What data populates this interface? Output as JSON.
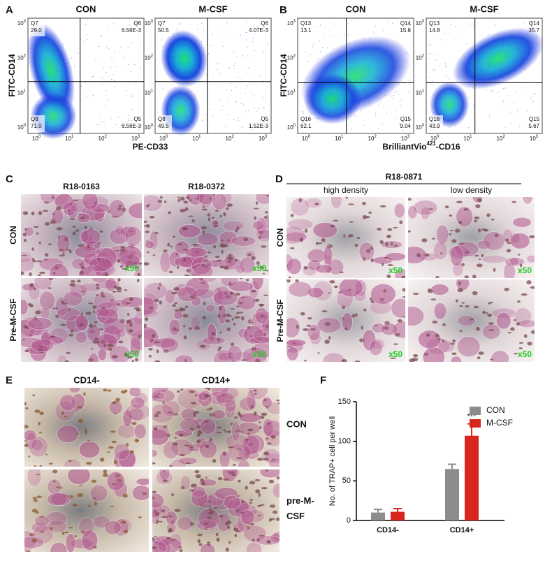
{
  "axis_ticks": {
    "base": "10",
    "exponents": [
      "0",
      "1",
      "2",
      "3"
    ]
  },
  "panel_a": {
    "letter": "A",
    "y_label": "FITC-CD14",
    "x_label": "PE-CD33",
    "plots": [
      {
        "title": "CON",
        "quadrants": [
          {
            "name": "Q7",
            "value": "29.0"
          },
          {
            "name": "Q6",
            "value": "6.56E-3"
          },
          {
            "name": "Q8",
            "value": "71.0"
          },
          {
            "name": "Q5",
            "value": "6.56E-3"
          }
        ]
      },
      {
        "title": "M-CSF",
        "quadrants": [
          {
            "name": "Q7",
            "value": "50.5"
          },
          {
            "name": "Q6",
            "value": "4.07E-3"
          },
          {
            "name": "Q8",
            "value": "49.5"
          },
          {
            "name": "Q5",
            "value": "1.52E-3"
          }
        ]
      }
    ]
  },
  "panel_b": {
    "letter": "B",
    "y_label": "FITC-CD14",
    "x_label": {
      "prefix": "BrilliantVio",
      "superscript": "421",
      "suffix": "-CD16"
    },
    "plots": [
      {
        "title": "CON",
        "quadrants": [
          {
            "name": "Q13",
            "value": "13.1"
          },
          {
            "name": "Q14",
            "value": "15.8"
          },
          {
            "name": "Q16",
            "value": "62.1"
          },
          {
            "name": "Q15",
            "value": "9.04"
          }
        ]
      },
      {
        "title": "M-CSF",
        "quadrants": [
          {
            "name": "Q13",
            "value": "14.8"
          },
          {
            "name": "Q14",
            "value": "35.7"
          },
          {
            "name": "Q16",
            "value": "43.9"
          },
          {
            "name": "Q15",
            "value": "5.67"
          }
        ]
      }
    ]
  },
  "panel_c": {
    "letter": "C",
    "columns": [
      "R18-0163",
      "R18-0372"
    ],
    "rows": [
      "CON",
      "Pre-M-CSF"
    ],
    "magnification": "x50"
  },
  "panel_d": {
    "letter": "D",
    "group": "R18-0871",
    "columns": [
      "high density",
      "low density"
    ],
    "rows": [
      "CON",
      "Pre-M-CSF"
    ],
    "magnification": "x50"
  },
  "panel_e": {
    "letter": "E",
    "columns": [
      "CD14-",
      "CD14+"
    ],
    "rows": [
      "CON",
      "pre-M-CSF"
    ]
  },
  "panel_f": {
    "letter": "F"
  },
  "chart_data": {
    "type": "bar",
    "y_label": "No. of TRAP+ cell per well",
    "categories": [
      "CD14-",
      "CD14+"
    ],
    "series": [
      {
        "name": "CON",
        "color": "#8c8c8c",
        "values": [
          10,
          65
        ],
        "errors": [
          4,
          6
        ]
      },
      {
        "name": "M-CSF",
        "color": "#d7261e",
        "values": [
          11,
          107
        ],
        "errors": [
          4,
          15
        ]
      }
    ],
    "ylim": [
      0,
      150
    ],
    "yticks": [
      0,
      50,
      100,
      150
    ],
    "legend": "upper-right",
    "annotations": [
      {
        "text": "***",
        "category": "CD14+",
        "series": "M-CSF"
      }
    ]
  }
}
